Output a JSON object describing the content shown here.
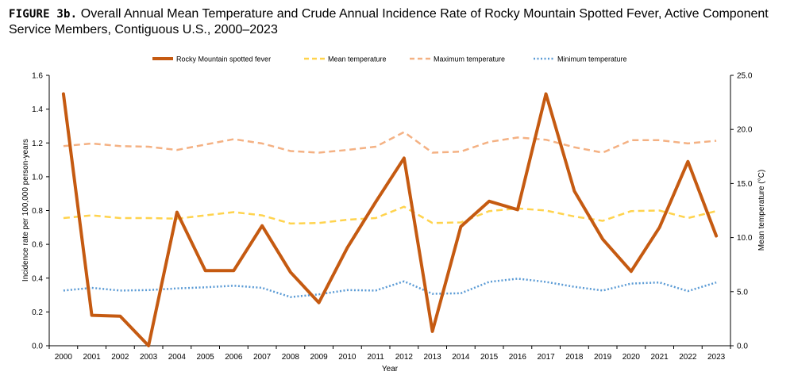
{
  "figure": {
    "label": "FIGURE 3b.",
    "title": "Overall Annual Mean Temperature and Crude Annual Incidence Rate of Rocky Mountain Spotted Fever, Active Component Service Members, Contiguous U.S., 2000–2023"
  },
  "chart_data": {
    "type": "line",
    "title": "Overall Annual Mean Temperature and Crude Annual Incidence Rate of Rocky Mountain Spotted Fever, Active Component Service Members, Contiguous U.S., 2000–2023",
    "xlabel": "Year",
    "ylabel": "Incidence rate per 100,000 person-years",
    "y2label": "Mean temperature (°C)",
    "categories": [
      "2000",
      "2001",
      "2002",
      "2003",
      "2004",
      "2005",
      "2006",
      "2007",
      "2008",
      "2009",
      "2010",
      "2011",
      "2012",
      "2013",
      "2014",
      "2015",
      "2016",
      "2017",
      "2018",
      "2019",
      "2020",
      "2021",
      "2022",
      "2023"
    ],
    "ylim": [
      0,
      1.6
    ],
    "y2lim": [
      0,
      25
    ],
    "yticks": [
      "0.0",
      "0.2",
      "0.4",
      "0.6",
      "0.8",
      "1.0",
      "1.2",
      "1.4",
      "1.6"
    ],
    "y2ticks": [
      "0.0",
      "5.0",
      "10.0",
      "15.0",
      "20.0",
      "25.0"
    ],
    "legend_position": "top",
    "grid": false,
    "series": [
      {
        "name": "Rocky Mountain spotted fever",
        "axis": "left",
        "style": "solid",
        "color": "#C55A11",
        "values": [
          1.49,
          0.18,
          0.175,
          0.0,
          0.79,
          0.445,
          0.445,
          0.71,
          0.435,
          0.255,
          0.58,
          0.85,
          1.11,
          0.085,
          0.705,
          0.855,
          0.805,
          1.49,
          0.915,
          0.63,
          0.44,
          0.7,
          1.09,
          0.65
        ]
      },
      {
        "name": "Mean temperature",
        "axis": "right",
        "style": "dashed",
        "color": "#FFD34D",
        "values": [
          11.8,
          12.05,
          11.8,
          11.8,
          11.75,
          12.05,
          12.35,
          12.05,
          11.3,
          11.35,
          11.65,
          11.8,
          12.85,
          11.35,
          11.4,
          12.45,
          12.7,
          12.5,
          11.95,
          11.55,
          12.45,
          12.5,
          11.8,
          12.45
        ]
      },
      {
        "name": "Maximum temperature",
        "axis": "right",
        "style": "dashed",
        "color": "#F4B183",
        "values": [
          18.45,
          18.7,
          18.45,
          18.4,
          18.1,
          18.6,
          19.1,
          18.7,
          18.0,
          17.85,
          18.1,
          18.4,
          19.75,
          17.85,
          17.95,
          18.85,
          19.25,
          19.05,
          18.35,
          17.85,
          19.0,
          19.0,
          18.7,
          18.95
        ]
      },
      {
        "name": "Minimum temperature",
        "axis": "right",
        "style": "dotted",
        "color": "#5B9BD5",
        "values": [
          5.1,
          5.35,
          5.1,
          5.15,
          5.3,
          5.4,
          5.55,
          5.35,
          4.5,
          4.75,
          5.15,
          5.1,
          5.95,
          4.8,
          4.85,
          5.9,
          6.2,
          5.9,
          5.45,
          5.1,
          5.75,
          5.85,
          5.05,
          5.85
        ]
      }
    ]
  }
}
